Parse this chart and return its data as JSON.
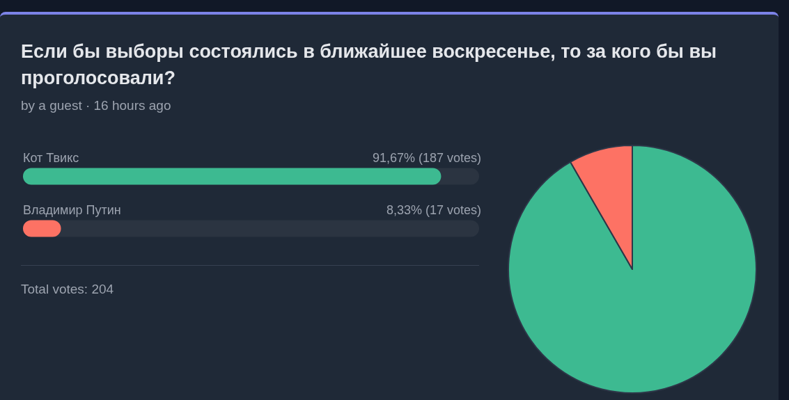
{
  "chart_data": [
    {
      "type": "bar",
      "title": "Если бы выборы состоялись в ближайшее воскресенье, то за кого бы вы проголосовали?",
      "subtitle": "by a guest · 16 hours ago",
      "orientation": "horizontal",
      "categories": [
        "Кот Твикс",
        "Владимир Путин"
      ],
      "values": [
        91.67,
        8.33
      ],
      "colors": [
        "#3dba91",
        "#fd7264"
      ],
      "value_labels": [
        "91,67% (187 votes)",
        "8,33% (17 votes)"
      ],
      "xlim": [
        0,
        100
      ],
      "annotations": [
        "Total votes: 204"
      ]
    },
    {
      "type": "pie",
      "categories": [
        null,
        null
      ],
      "values": [
        91.67,
        8.33
      ],
      "colors": [
        "#3dba91",
        "#fd7264"
      ]
    }
  ]
}
